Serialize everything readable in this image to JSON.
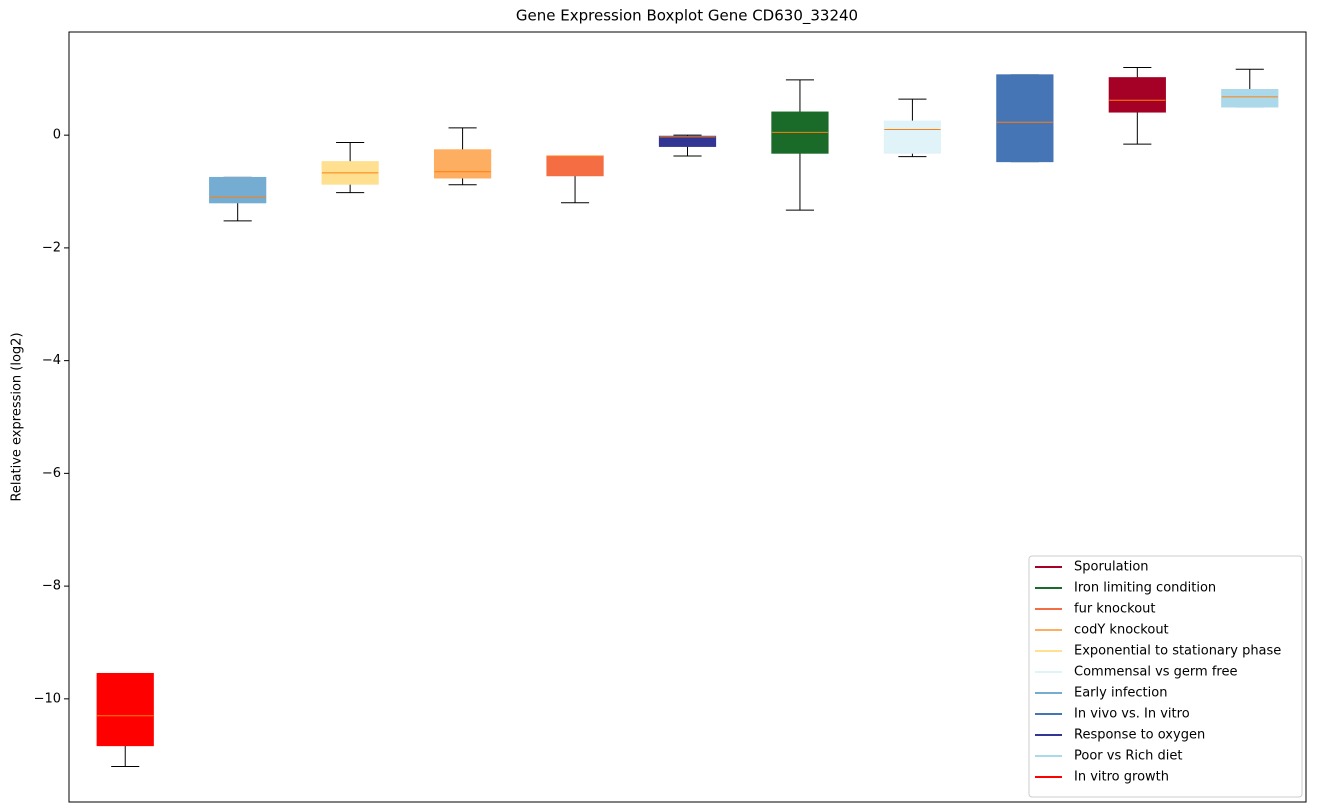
{
  "chart_data": {
    "type": "boxplot",
    "title": "Gene Expression Boxplot Gene CD630_33240",
    "y_label": "Relative expression (log2)",
    "xlim": [
      0.5,
      11.5
    ],
    "ylim": [
      -11.83,
      1.83
    ],
    "yticks": [
      {
        "value": -10,
        "label": "−10"
      },
      {
        "value": -8,
        "label": "−8"
      },
      {
        "value": -6,
        "label": "−6"
      },
      {
        "value": -4,
        "label": "−4"
      },
      {
        "value": -2,
        "label": "−2"
      },
      0
    ],
    "median_color": "#ff7f0e",
    "legend": "lower right",
    "series": [
      {
        "name": "Sporulation",
        "color": "#a50026",
        "x": 10,
        "whislo": -0.16,
        "q1": 0.41,
        "med": 0.62,
        "q3": 1.02,
        "whishi": 1.2
      },
      {
        "name": "Iron limiting condition",
        "color": "#1a6b2a",
        "x": 7,
        "whislo": -1.33,
        "q1": -0.32,
        "med": 0.05,
        "q3": 0.41,
        "whishi": 0.98
      },
      {
        "name": "fur knockout",
        "color": "#f46d43",
        "x": 5,
        "whislo": -1.2,
        "q1": -0.72,
        "med": -0.37,
        "q3": -0.37,
        "whishi": -0.37
      },
      {
        "name": "codY knockout",
        "color": "#fdae61",
        "x": 4,
        "whislo": -0.88,
        "q1": -0.76,
        "med": -0.65,
        "q3": -0.26,
        "whishi": 0.13
      },
      {
        "name": "Exponential to stationary phase",
        "color": "#fee090",
        "x": 3,
        "whislo": -1.02,
        "q1": -0.87,
        "med": -0.67,
        "q3": -0.47,
        "whishi": -0.13
      },
      {
        "name": "Commensal vs germ free",
        "color": "#e0f3f8",
        "x": 8,
        "whislo": -0.38,
        "q1": -0.32,
        "med": 0.1,
        "q3": 0.25,
        "whishi": 0.64
      },
      {
        "name": "Early infection",
        "color": "#74add1",
        "x": 2,
        "whislo": -1.52,
        "q1": -1.2,
        "med": -1.1,
        "q3": -0.75,
        "whishi": -0.75
      },
      {
        "name": "In vivo vs. In vitro",
        "color": "#4575b4",
        "x": 9,
        "whislo": -0.47,
        "q1": -0.47,
        "med": 0.23,
        "q3": 1.07,
        "whishi": 1.07
      },
      {
        "name": "Response to oxygen",
        "color": "#313695",
        "x": 6,
        "whislo": -0.37,
        "q1": -0.2,
        "med": -0.03,
        "q3": -0.02,
        "whishi": 0
      },
      {
        "name": "Poor vs Rich diet",
        "color": "#abd9e9",
        "x": 11,
        "whislo": 0.5,
        "q1": 0.5,
        "med": 0.68,
        "q3": 0.81,
        "whishi": 1.17
      },
      {
        "name": "In vitro growth",
        "color": "#ff0000",
        "x": 1,
        "whislo": -11.2,
        "q1": -10.83,
        "med": -10.3,
        "q3": -9.55,
        "whishi": -9.55
      }
    ]
  }
}
